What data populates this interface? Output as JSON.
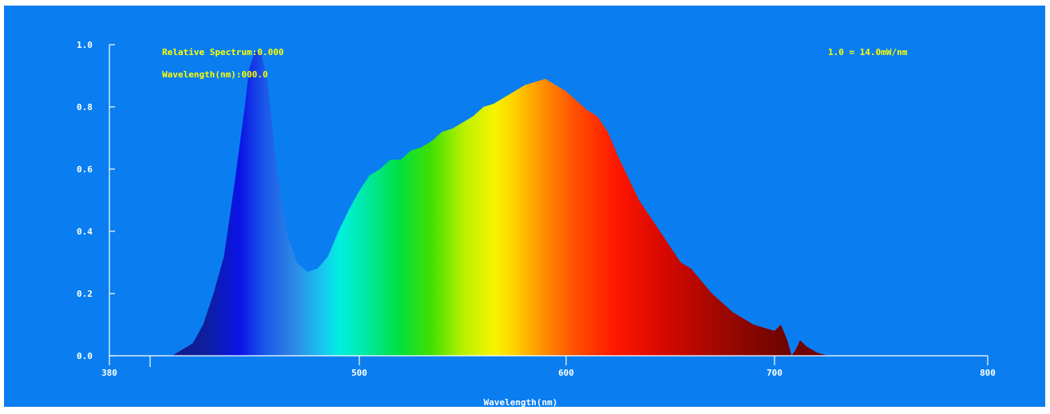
{
  "colors": {
    "background": "#0a7ef0",
    "border": "#ffffff",
    "axis": "#ffffff",
    "info_text": "#ffff00"
  },
  "info": {
    "relative_spectrum": "Relative Spectrum:0.000",
    "wavelength_readout": "Wavelength(nm):000.0",
    "scale_note": "1.0 = 14.0mW/nm"
  },
  "chart_data": {
    "type": "area",
    "title": "",
    "xlabel": "Wavelength(nm)",
    "ylabel": "",
    "xlim": [
      380,
      800
    ],
    "ylim": [
      0,
      1.0
    ],
    "x_ticks": [
      380,
      500,
      600,
      700,
      800
    ],
    "x_tick_labels": [
      "380",
      "500",
      "600",
      "700",
      "800"
    ],
    "y_ticks": [
      0,
      0.2,
      0.4,
      0.6,
      0.8,
      1.0
    ],
    "y_tick_labels": [
      "0.0",
      "0.2",
      "0.4",
      "0.6",
      "0.8",
      "1.0"
    ],
    "grid": false,
    "fill": "visible-spectrum gradient",
    "series": [
      {
        "x": [
          410,
          420,
          425,
          430,
          435,
          440,
          445,
          447,
          450,
          453,
          456,
          460,
          465,
          470,
          475,
          480,
          485,
          490,
          495,
          500,
          505,
          510,
          515,
          520,
          525,
          530,
          535,
          540,
          545,
          550,
          555,
          560,
          565,
          570,
          575,
          580,
          585,
          590,
          595,
          600,
          605,
          610,
          615,
          620,
          625,
          630,
          635,
          640,
          645,
          650,
          655,
          660,
          665,
          670,
          675,
          680,
          685,
          690,
          695,
          700,
          703,
          706,
          708,
          710,
          712,
          715,
          720,
          725,
          728
        ],
        "y": [
          0.0,
          0.04,
          0.1,
          0.2,
          0.32,
          0.55,
          0.8,
          0.92,
          0.98,
          0.97,
          0.88,
          0.62,
          0.4,
          0.3,
          0.27,
          0.28,
          0.32,
          0.4,
          0.47,
          0.53,
          0.58,
          0.6,
          0.63,
          0.63,
          0.66,
          0.67,
          0.69,
          0.72,
          0.73,
          0.75,
          0.77,
          0.8,
          0.81,
          0.83,
          0.85,
          0.87,
          0.88,
          0.89,
          0.87,
          0.85,
          0.82,
          0.79,
          0.77,
          0.72,
          0.64,
          0.57,
          0.5,
          0.45,
          0.4,
          0.35,
          0.3,
          0.28,
          0.24,
          0.2,
          0.17,
          0.14,
          0.12,
          0.1,
          0.09,
          0.08,
          0.1,
          0.05,
          0.0,
          0.02,
          0.05,
          0.03,
          0.01,
          0.0,
          0.0
        ]
      }
    ]
  }
}
